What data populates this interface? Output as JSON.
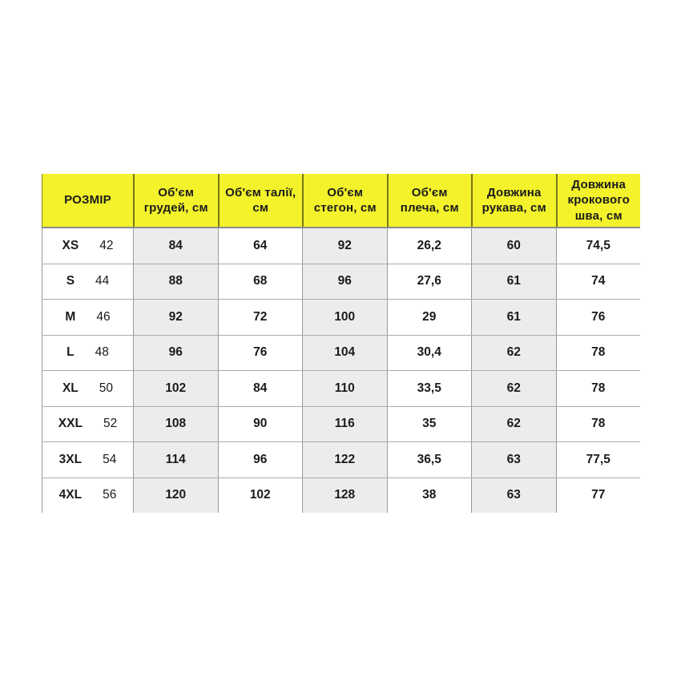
{
  "colors": {
    "header_bg": "#F3F22B",
    "shaded_column_bg": "#ECECEC",
    "text": "#1B1B1B",
    "row_line": "#ABABAB",
    "column_line": "#9A9A9A",
    "header_separator": "rgba(0,0,0,0.5)"
  },
  "table": {
    "headers": [
      "РОЗМІР",
      "Об'єм грудей, см",
      "Об'єм талії, см",
      "Об'єм стегон, см",
      "Об'єм плеча, см",
      "Довжина рукава, см",
      "Довжина крокового шва, см"
    ],
    "rows": [
      {
        "size": "XS",
        "num": "42",
        "values": [
          "84",
          "64",
          "92",
          "26,2",
          "60",
          "74,5"
        ]
      },
      {
        "size": "S",
        "num": "44",
        "values": [
          "88",
          "68",
          "96",
          "27,6",
          "61",
          "74"
        ]
      },
      {
        "size": "M",
        "num": "46",
        "values": [
          "92",
          "72",
          "100",
          "29",
          "61",
          "76"
        ]
      },
      {
        "size": "L",
        "num": "48",
        "values": [
          "96",
          "76",
          "104",
          "30,4",
          "62",
          "78"
        ]
      },
      {
        "size": "XL",
        "num": "50",
        "values": [
          "102",
          "84",
          "110",
          "33,5",
          "62",
          "78"
        ]
      },
      {
        "size": "XXL",
        "num": "52",
        "values": [
          "108",
          "90",
          "116",
          "35",
          "62",
          "78"
        ]
      },
      {
        "size": "3XL",
        "num": "54",
        "values": [
          "114",
          "96",
          "122",
          "36,5",
          "63",
          "77,5"
        ]
      },
      {
        "size": "4XL",
        "num": "56",
        "values": [
          "120",
          "102",
          "128",
          "38",
          "63",
          "77"
        ]
      }
    ]
  },
  "chart_data": {
    "type": "table",
    "title": "Size chart (Розмірна сітка)",
    "columns": [
      "РОЗМІР",
      "Об'єм грудей, см",
      "Об'єм талії, см",
      "Об'єм стегон, см",
      "Об'єм плеча, см",
      "Довжина рукава, см",
      "Довжина крокового шва, см"
    ],
    "rows": [
      [
        "XS 42",
        "84",
        "64",
        "92",
        "26,2",
        "60",
        "74,5"
      ],
      [
        "S 44",
        "88",
        "68",
        "96",
        "27,6",
        "61",
        "74"
      ],
      [
        "M 46",
        "92",
        "72",
        "100",
        "29",
        "61",
        "76"
      ],
      [
        "L 48",
        "96",
        "76",
        "104",
        "30,4",
        "62",
        "78"
      ],
      [
        "XL 50",
        "102",
        "84",
        "110",
        "33,5",
        "62",
        "78"
      ],
      [
        "XXL 52",
        "108",
        "90",
        "116",
        "35",
        "62",
        "78"
      ],
      [
        "3XL 54",
        "114",
        "96",
        "122",
        "36,5",
        "63",
        "77,5"
      ],
      [
        "4XL 56",
        "120",
        "102",
        "128",
        "38",
        "63",
        "77"
      ]
    ],
    "layout": {
      "header_background": "#F3F22B",
      "shaded_columns": [
        "Об'єм грудей, см",
        "Об'єм стегон, см",
        "Довжина рукава, см"
      ],
      "grid": true
    }
  }
}
